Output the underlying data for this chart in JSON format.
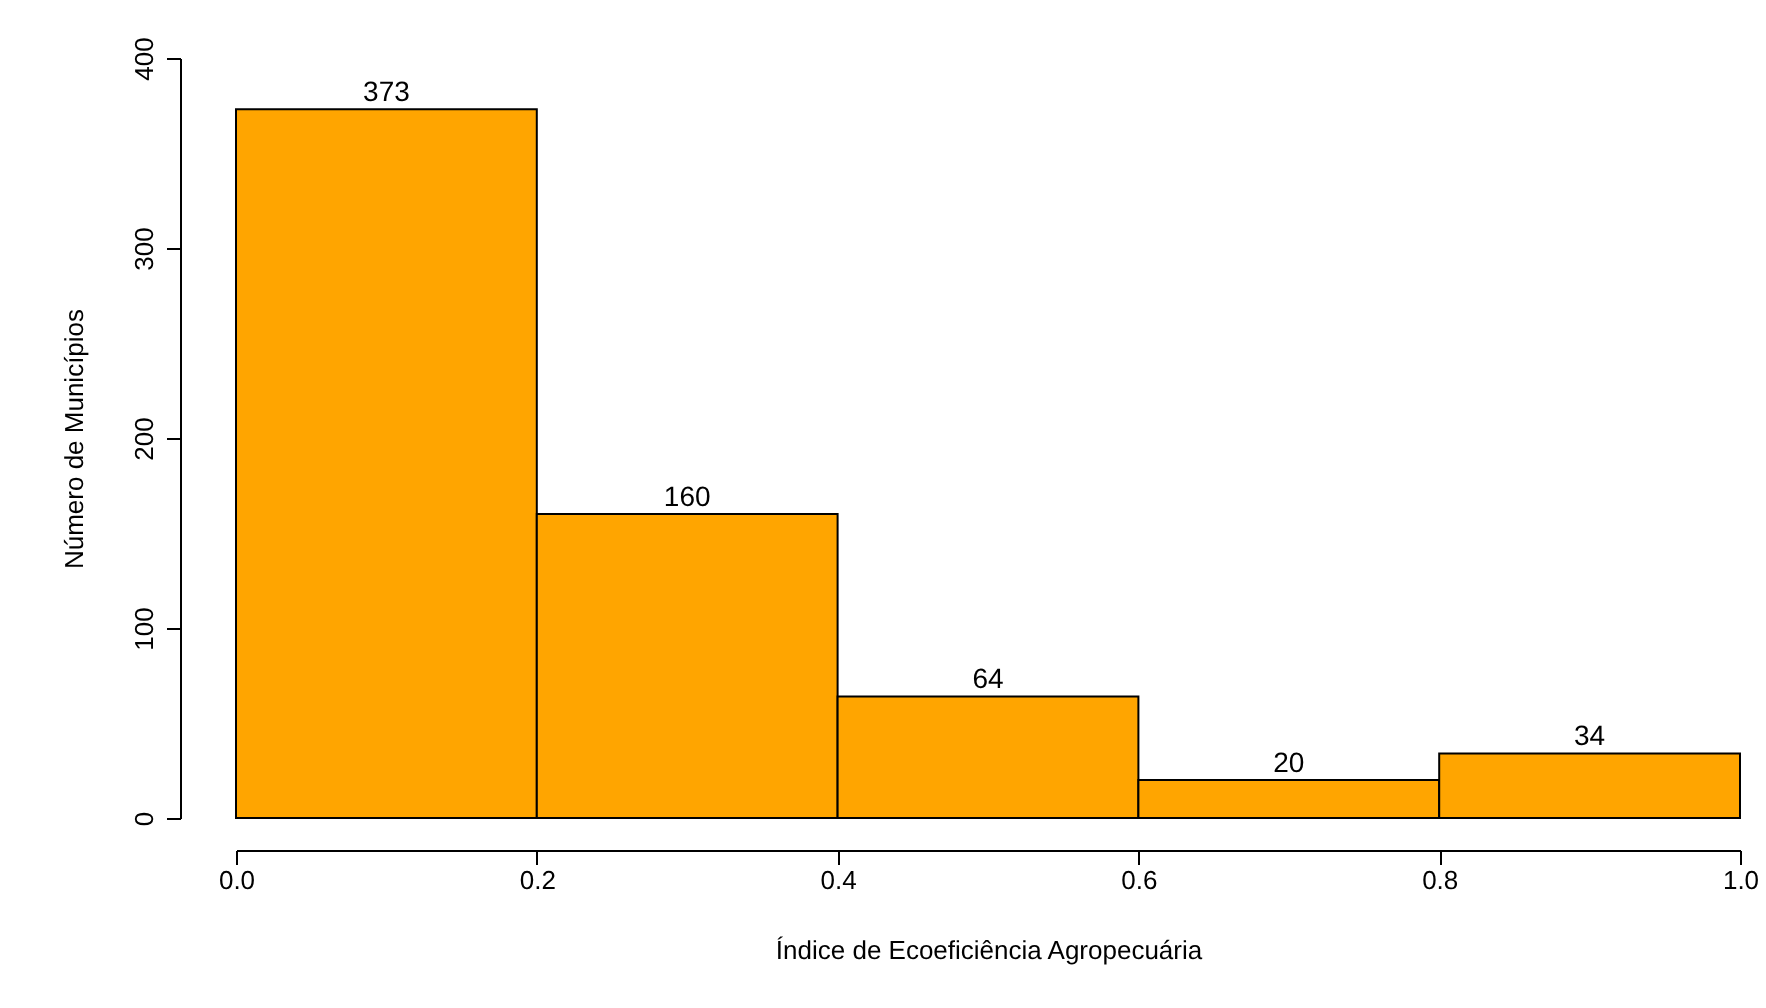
{
  "chart_data": {
    "type": "histogram",
    "xlabel": "Índice de Ecoeficiência Agropecuária",
    "ylabel": "Número de Municípios",
    "bins": [
      0,
      0.2,
      0.4,
      0.6,
      0.8,
      1.0
    ],
    "values": [
      373,
      160,
      64,
      20,
      34
    ],
    "color": "#ffa500",
    "data_labels": true,
    "xlim": [
      0,
      1
    ],
    "xticks": [
      {
        "value": 0,
        "label": "0.0"
      },
      {
        "value": 0.2,
        "label": "0.2"
      },
      {
        "value": 0.4,
        "label": "0.4"
      },
      {
        "value": 0.6,
        "label": "0.6"
      },
      {
        "value": 0.8,
        "label": "0.8"
      },
      {
        "value": 1,
        "label": "1.0"
      }
    ],
    "ylim": [
      0,
      400
    ],
    "yticks": [
      0,
      100,
      200,
      300,
      400
    ]
  }
}
